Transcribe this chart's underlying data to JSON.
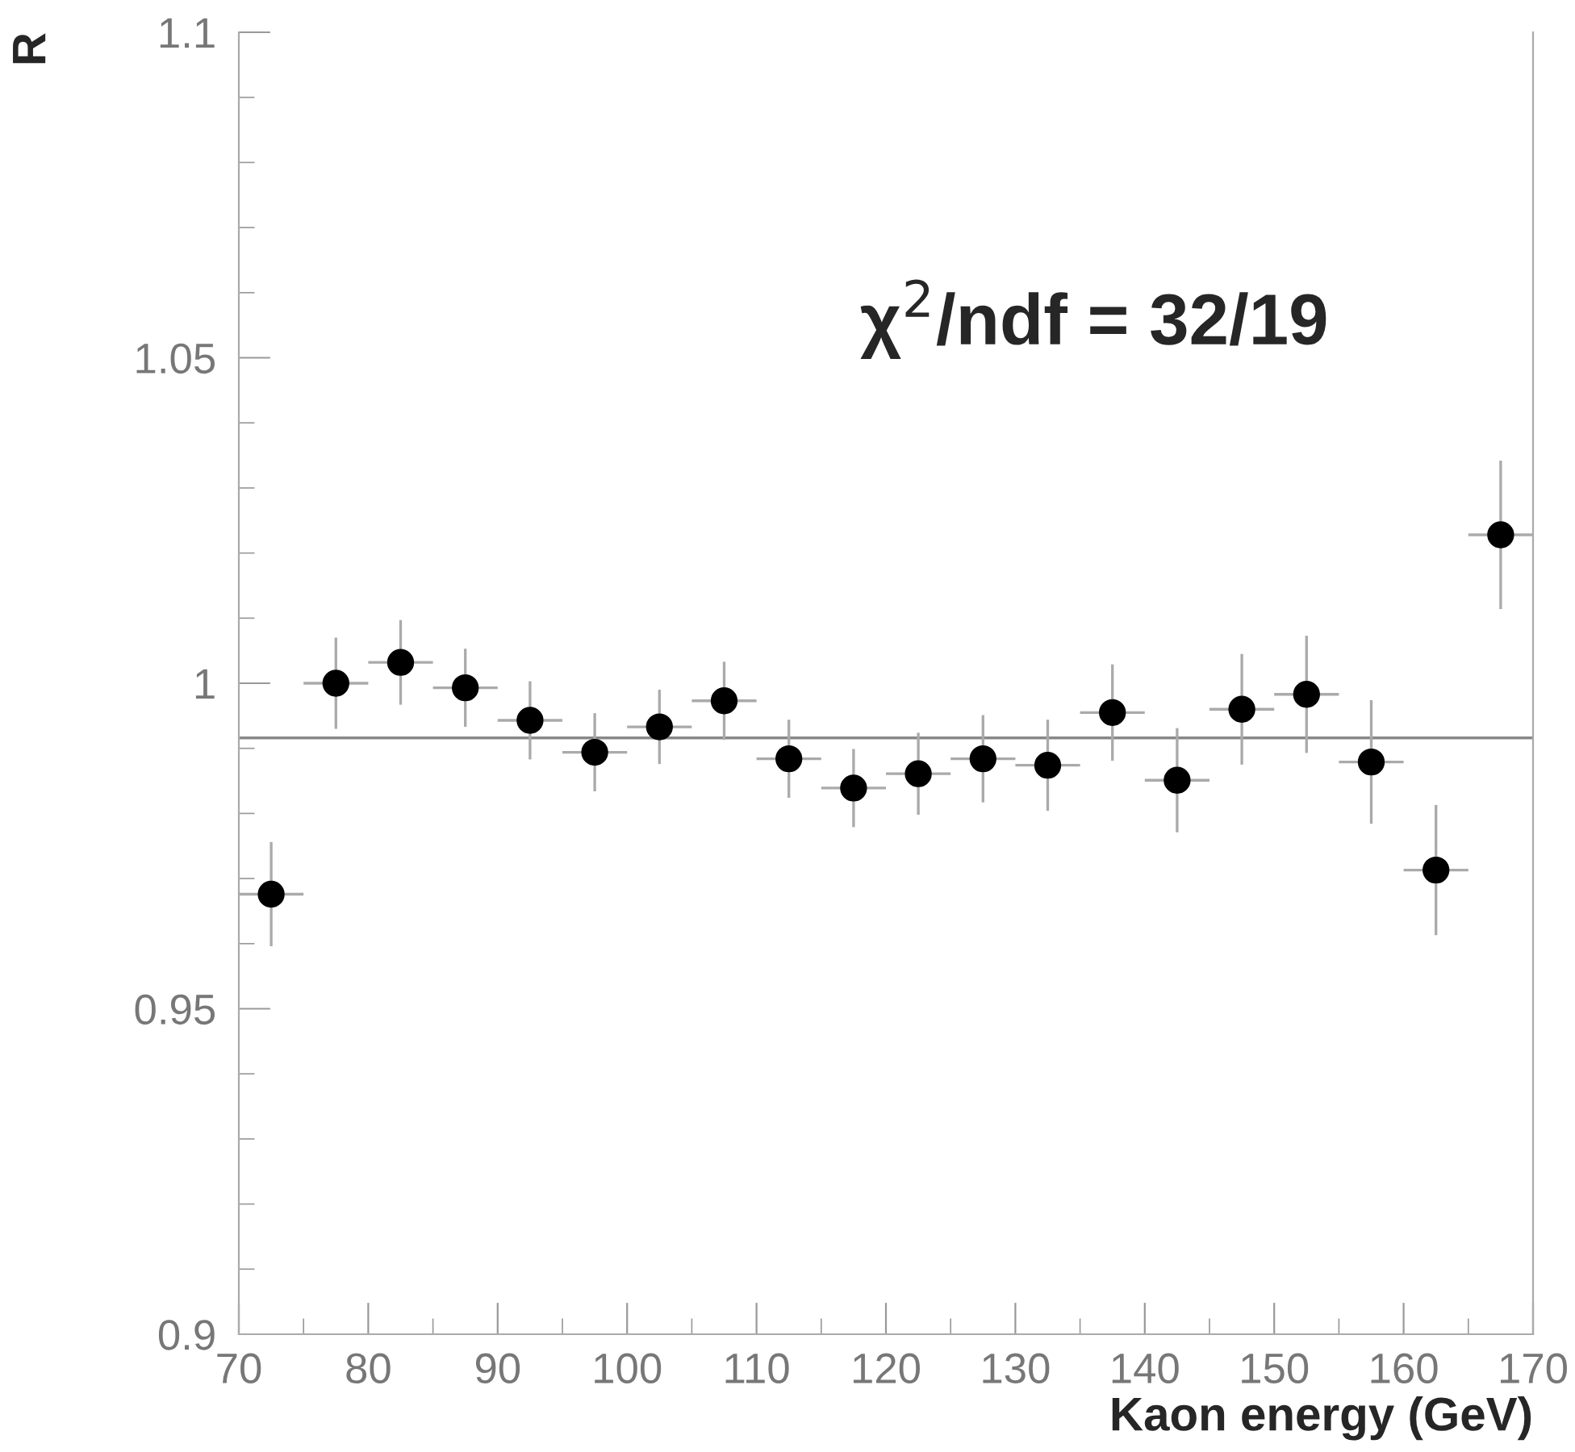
{
  "chart_data": {
    "type": "scatter",
    "xlabel": "Kaon energy (GeV)",
    "ylabel": "R",
    "x": [
      72.5,
      77.5,
      82.5,
      87.5,
      92.5,
      97.5,
      102.5,
      107.5,
      112.5,
      117.5,
      122.5,
      127.5,
      132.5,
      137.5,
      142.5,
      147.5,
      152.5,
      157.5,
      162.5,
      167.5
    ],
    "series": [
      {
        "color": "#000000",
        "values": [
          0.9676,
          1.0,
          1.0032,
          0.9993,
          0.9943,
          0.9894,
          0.9933,
          0.9973,
          0.9884,
          0.9839,
          0.9861,
          0.9884,
          0.9874,
          0.9955,
          0.9851,
          0.996,
          0.9983,
          0.9879,
          0.9713,
          1.0228
        ],
        "errors": [
          0.008,
          0.007,
          0.0065,
          0.006,
          0.006,
          0.006,
          0.0057,
          0.006,
          0.006,
          0.006,
          0.0063,
          0.0067,
          0.007,
          0.0074,
          0.008,
          0.0085,
          0.009,
          0.0095,
          0.01,
          0.0114
        ],
        "xerrors": [
          2.5,
          2.5,
          2.5,
          2.5,
          2.5,
          2.5,
          2.5,
          2.5,
          2.5,
          2.5,
          2.5,
          2.5,
          2.5,
          2.5,
          2.5,
          2.5,
          2.5,
          2.5,
          2.5,
          2.5
        ]
      }
    ],
    "xlim": [
      70,
      170
    ],
    "xticks": [
      70,
      80,
      90,
      100,
      110,
      120,
      130,
      140,
      150,
      160,
      170
    ],
    "ylim": [
      0.9,
      1.1
    ],
    "yticks": [
      0.9,
      0.95,
      1,
      1.05,
      1.1
    ],
    "ref_lines": [
      {
        "axis": "y",
        "value": 0.9916,
        "color": "#888888"
      }
    ],
    "annotations": [
      "χ$^{2}$/ndf = 32/19"
    ],
    "marker": "circle",
    "grid": false,
    "legend": false
  }
}
